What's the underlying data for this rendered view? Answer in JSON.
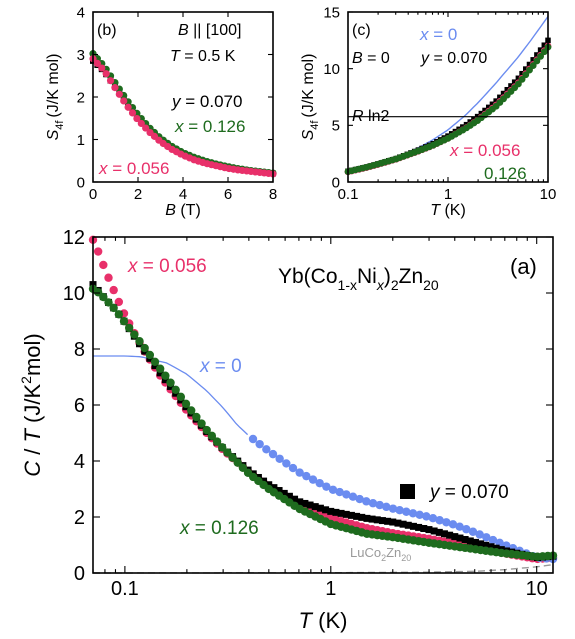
{
  "colors": {
    "x0": "#6b8cf0",
    "y070": "#000000",
    "x056": "#e8306a",
    "x126": "#1e6b1e",
    "lu": "#9a9a9a"
  },
  "chart_data": [
    {
      "id": "b",
      "type": "scatter",
      "panel_label": "(b)",
      "annotation_field": "B || [100]",
      "annotation_field_parts": {
        "var": "B",
        "rel": "||",
        "dir": "[100]"
      },
      "annotation_temp": "T = 0.5 K",
      "annotation_temp_parts": {
        "var": "T",
        "rest": "= 0.5 K"
      },
      "xlabel": "B (T)",
      "xlabel_parts": {
        "var": "B",
        "unit": "(T)"
      },
      "ylabel": "S4f (J/K mol)",
      "ylabel_parts": {
        "var": "S",
        "sub": "4f",
        "unit": "(J/K mol)"
      },
      "xlim": [
        0,
        8
      ],
      "ylim": [
        0,
        4
      ],
      "xticks": [
        "0",
        "2",
        "4",
        "6",
        "8"
      ],
      "yticks": [
        "0",
        "1",
        "2",
        "3",
        "4"
      ],
      "series": [
        {
          "name": "y = 0.070",
          "label_parts": {
            "var": "y",
            "rest": "= 0.070"
          },
          "color": "#000000",
          "marker": "square",
          "x": [
            0,
            0.5,
            1,
            1.5,
            2,
            2.5,
            3,
            3.5,
            4,
            4.5,
            5,
            5.5,
            6,
            6.5,
            7,
            7.5,
            8
          ],
          "y": [
            2.85,
            2.6,
            2.22,
            1.85,
            1.5,
            1.22,
            0.98,
            0.8,
            0.66,
            0.55,
            0.46,
            0.4,
            0.34,
            0.3,
            0.26,
            0.23,
            0.2
          ]
        },
        {
          "name": "x = 0.126",
          "label_parts": {
            "var": "x",
            "rest": "= 0.126"
          },
          "color": "#1e6b1e",
          "marker": "circle",
          "x": [
            0,
            0.5,
            1,
            1.5,
            2,
            2.5,
            3,
            3.5,
            4,
            4.5,
            5,
            5.5,
            6,
            6.5,
            7,
            7.5,
            8
          ],
          "y": [
            3.02,
            2.72,
            2.32,
            1.93,
            1.58,
            1.28,
            1.03,
            0.84,
            0.69,
            0.58,
            0.49,
            0.42,
            0.36,
            0.31,
            0.27,
            0.24,
            0.21
          ]
        },
        {
          "name": "x = 0.056",
          "label_parts": {
            "var": "x",
            "rest": "= 0.056"
          },
          "color": "#e8306a",
          "marker": "circle",
          "x": [
            0,
            0.5,
            1,
            1.5,
            2,
            2.5,
            3,
            3.5,
            4,
            4.5,
            5,
            5.5,
            6,
            6.5,
            7,
            7.5,
            8
          ],
          "y": [
            2.9,
            2.62,
            2.2,
            1.8,
            1.46,
            1.18,
            0.95,
            0.77,
            0.63,
            0.52,
            0.44,
            0.38,
            0.32,
            0.28,
            0.25,
            0.22,
            0.19
          ]
        }
      ]
    },
    {
      "id": "c",
      "type": "scatter",
      "panel_label": "(c)",
      "annotation_field": "B = 0",
      "annotation_field_parts": {
        "var": "B",
        "rest": "= 0"
      },
      "hline_label": "R ln2",
      "hline_label_parts": {
        "var": "R",
        "rest": "ln2"
      },
      "hline_value": 5.76,
      "xlabel": "T (K)",
      "xlabel_parts": {
        "var": "T",
        "unit": "(K)"
      },
      "ylabel": "S4f (J/K mol)",
      "ylabel_parts": {
        "var": "S",
        "sub": "4f",
        "unit": "(J/K mol)"
      },
      "xscale": "log",
      "xlim": [
        0.1,
        10
      ],
      "ylim": [
        0,
        15
      ],
      "xticks": [
        "0.1",
        "1",
        "10"
      ],
      "yticks": [
        "0",
        "5",
        "10",
        "15"
      ],
      "series": [
        {
          "name": "x = 0",
          "label_parts": {
            "var": "x",
            "rest": "= 0"
          },
          "color": "#6b8cf0",
          "marker": "line",
          "x": [
            0.1,
            0.15,
            0.2,
            0.3,
            0.5,
            0.7,
            1,
            1.5,
            2,
            3,
            5,
            7,
            10
          ],
          "y": [
            1.0,
            1.35,
            1.65,
            2.15,
            3.0,
            3.7,
            4.6,
            5.9,
            7.0,
            8.7,
            11.0,
            12.7,
            14.6
          ]
        },
        {
          "name": "y = 0.070",
          "label_parts": {
            "var": "y",
            "rest": "= 0.070"
          },
          "color": "#000000",
          "marker": "square",
          "x": [
            0.1,
            0.15,
            0.2,
            0.3,
            0.5,
            0.7,
            1,
            1.5,
            2,
            3,
            5,
            7,
            10
          ],
          "y": [
            0.95,
            1.3,
            1.6,
            2.05,
            2.8,
            3.35,
            4.05,
            5.0,
            5.8,
            7.1,
            9.1,
            10.7,
            12.5
          ]
        },
        {
          "name": "x = 0.056",
          "label_parts": {
            "var": "x",
            "rest": "= 0.056"
          },
          "color": "#e8306a",
          "marker": "circle",
          "x": [
            0.1,
            0.15,
            0.2,
            0.3,
            0.5,
            0.7,
            1,
            1.5,
            2,
            3,
            5,
            7,
            10
          ],
          "y": [
            0.9,
            1.25,
            1.55,
            2.0,
            2.7,
            3.2,
            3.85,
            4.75,
            5.5,
            6.75,
            8.7,
            10.3,
            12.0
          ]
        },
        {
          "name": "0.126",
          "color": "#1e6b1e",
          "marker": "circle",
          "x": [
            0.1,
            0.15,
            0.2,
            0.3,
            0.5,
            0.7,
            1,
            1.5,
            2,
            3,
            5,
            7,
            10
          ],
          "y": [
            0.92,
            1.28,
            1.58,
            2.02,
            2.72,
            3.22,
            3.85,
            4.72,
            5.45,
            6.65,
            8.6,
            10.2,
            11.9
          ]
        }
      ]
    },
    {
      "id": "a",
      "type": "scatter",
      "panel_label": "(a)",
      "compound_label": "Yb(Co1-xNix)2Zn20",
      "compound_parts": {
        "a": "Yb(Co",
        "s1": "1-x",
        "b": "Ni",
        "s2": "x",
        "c": ")",
        "s3": "2",
        "d": "Zn",
        "s4": "20"
      },
      "ref_label": "LuCo2Zn20",
      "ref_parts": {
        "a": "LuCo",
        "s1": "2",
        "b": "Zn",
        "s2": "20"
      },
      "xlabel": "T (K)",
      "xlabel_parts": {
        "var": "T",
        "unit": "(K)"
      },
      "ylabel": "C / T (J/K2mol)",
      "ylabel_parts": {
        "var1": "C",
        "slash": " / ",
        "var2": "T",
        "unit_a": " (J/K",
        "sup": "2",
        "unit_b": "mol)"
      },
      "xscale": "log",
      "xlim": [
        0.07,
        12
      ],
      "ylim": [
        0,
        12
      ],
      "xticks": [
        "0.1",
        "1",
        "10"
      ],
      "yticks": [
        "0",
        "2",
        "4",
        "6",
        "8",
        "10",
        "12"
      ],
      "series": [
        {
          "name": "x = 0.056",
          "label_parts": {
            "var": "x",
            "rest": "= 0.056"
          },
          "color": "#e8306a",
          "marker": "circle",
          "x": [
            0.07,
            0.075,
            0.08,
            0.09,
            0.1,
            0.12,
            0.15,
            0.2,
            0.25,
            0.3,
            0.4,
            0.5,
            0.7,
            1,
            1.5,
            2,
            3,
            4,
            5,
            7,
            10,
            12
          ],
          "y": [
            11.9,
            11.4,
            10.85,
            9.95,
            9.2,
            8.1,
            7.0,
            5.8,
            5.0,
            4.4,
            3.6,
            3.1,
            2.5,
            1.95,
            1.6,
            1.42,
            1.22,
            1.05,
            0.92,
            0.7,
            0.5,
            0.55
          ]
        },
        {
          "name": "x = 0",
          "label_parts": {
            "var": "x",
            "rest": "= 0"
          },
          "color": "#6b8cf0",
          "marker": "line_then_circle",
          "x": [
            0.07,
            0.1,
            0.12,
            0.14,
            0.16,
            0.2,
            0.25,
            0.3,
            0.35,
            0.4,
            0.5,
            0.7,
            1,
            1.5,
            2,
            3,
            4,
            5,
            7,
            10,
            12
          ],
          "y": [
            7.75,
            7.75,
            7.72,
            7.6,
            7.5,
            7.1,
            6.5,
            5.9,
            5.3,
            4.9,
            4.35,
            3.6,
            3.0,
            2.55,
            2.3,
            2.0,
            1.72,
            1.45,
            1.0,
            0.55,
            0.5
          ]
        },
        {
          "name": "y = 0.070",
          "label_parts": {
            "var": "y",
            "rest": "= 0.070"
          },
          "color": "#000000",
          "marker": "square",
          "x": [
            0.07,
            0.075,
            0.08,
            0.09,
            0.1,
            0.12,
            0.15,
            0.2,
            0.25,
            0.3,
            0.4,
            0.5,
            0.7,
            1,
            1.5,
            2,
            3,
            4,
            5,
            7,
            10,
            12
          ],
          "y": [
            10.3,
            10.05,
            9.8,
            9.4,
            8.95,
            8.1,
            7.1,
            5.9,
            5.05,
            4.45,
            3.65,
            3.15,
            2.55,
            2.2,
            1.95,
            1.82,
            1.55,
            1.3,
            1.1,
            0.8,
            0.55,
            0.6
          ]
        },
        {
          "name": "x = 0.126",
          "label_parts": {
            "var": "x",
            "rest": "= 0.126"
          },
          "color": "#1e6b1e",
          "marker": "circle",
          "x": [
            0.07,
            0.075,
            0.08,
            0.09,
            0.1,
            0.12,
            0.15,
            0.2,
            0.25,
            0.3,
            0.4,
            0.5,
            0.7,
            1,
            1.5,
            2,
            3,
            4,
            5,
            7,
            10,
            12
          ],
          "y": [
            10.15,
            10.0,
            9.8,
            9.4,
            8.95,
            8.2,
            7.25,
            6.0,
            5.1,
            4.45,
            3.55,
            3.0,
            2.3,
            1.75,
            1.4,
            1.28,
            1.08,
            0.95,
            0.85,
            0.7,
            0.58,
            0.62
          ]
        },
        {
          "name": "LuCo2Zn20",
          "color": "#9a9a9a",
          "marker": "dashed",
          "x": [
            0.07,
            1,
            3,
            5,
            7,
            10,
            12
          ],
          "y": [
            0,
            0.01,
            0.03,
            0.06,
            0.12,
            0.22,
            0.3
          ]
        }
      ]
    }
  ]
}
